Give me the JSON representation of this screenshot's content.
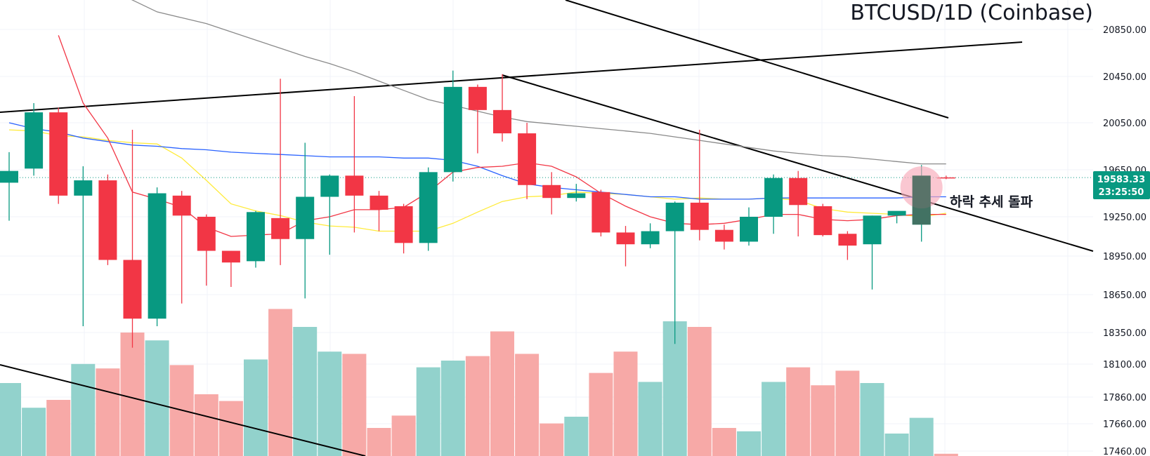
{
  "chart_data": {
    "type": "candlestick",
    "title": "BTCUSD/1D (Coinbase)",
    "symbol": "BTCUSD",
    "interval": "1D",
    "exchange": "Coinbase",
    "y_ticks": [
      "20850.00",
      "20450.00",
      "20050.00",
      "19650.00",
      "19250.00",
      "18950.00",
      "18650.00",
      "18350.00",
      "18100.00",
      "17860.00",
      "17660.00",
      "17460.00"
    ],
    "current_price": "19583.33",
    "countdown": "23:25:50",
    "annotation": "하락 추세 돌파",
    "grid": true,
    "colors": {
      "up": "#089981",
      "down": "#f23645",
      "up_volume": "#92d2cc",
      "down_volume": "#f7a9a7",
      "ma_red": "#f23645",
      "ma_yellow": "#ffeb3b",
      "ma_blue": "#2962ff",
      "ma_gray": "#8a8a8a",
      "trendline": "#000000",
      "circle": "#f7a9b8",
      "price_badge": "#089981"
    },
    "candles": [
      {
        "o": 19540,
        "h": 19800,
        "l": 19220,
        "c": 19640
      },
      {
        "o": 19660,
        "h": 20220,
        "l": 19600,
        "c": 20140
      },
      {
        "o": 20140,
        "h": 20180,
        "l": 19360,
        "c": 19430
      },
      {
        "o": 19430,
        "h": 19680,
        "l": 18400,
        "c": 19560
      },
      {
        "o": 19560,
        "h": 19610,
        "l": 18880,
        "c": 18920
      },
      {
        "o": 18920,
        "h": 19990,
        "l": 18230,
        "c": 18460
      },
      {
        "o": 18460,
        "h": 19500,
        "l": 18400,
        "c": 19450
      },
      {
        "o": 19430,
        "h": 19470,
        "l": 18580,
        "c": 19260
      },
      {
        "o": 19250,
        "h": 19270,
        "l": 18720,
        "c": 18990
      },
      {
        "o": 18990,
        "h": 18990,
        "l": 18710,
        "c": 18900
      },
      {
        "o": 18910,
        "h": 19300,
        "l": 18860,
        "c": 19290
      },
      {
        "o": 19240,
        "h": 20430,
        "l": 18880,
        "c": 19080
      },
      {
        "o": 19080,
        "h": 19880,
        "l": 18620,
        "c": 19420
      },
      {
        "o": 19420,
        "h": 19610,
        "l": 18960,
        "c": 19600
      },
      {
        "o": 19600,
        "h": 20280,
        "l": 19130,
        "c": 19430
      },
      {
        "o": 19430,
        "h": 19470,
        "l": 19140,
        "c": 19310
      },
      {
        "o": 19340,
        "h": 19360,
        "l": 18970,
        "c": 19050
      },
      {
        "o": 19050,
        "h": 19670,
        "l": 18990,
        "c": 19630
      },
      {
        "o": 19630,
        "h": 20500,
        "l": 19550,
        "c": 20360
      },
      {
        "o": 20360,
        "h": 20380,
        "l": 19790,
        "c": 20160
      },
      {
        "o": 20160,
        "h": 20470,
        "l": 19890,
        "c": 19960
      },
      {
        "o": 19960,
        "h": 20050,
        "l": 19400,
        "c": 19520
      },
      {
        "o": 19520,
        "h": 19630,
        "l": 19270,
        "c": 19410
      },
      {
        "o": 19410,
        "h": 19530,
        "l": 19380,
        "c": 19450
      },
      {
        "o": 19460,
        "h": 19480,
        "l": 19100,
        "c": 19130
      },
      {
        "o": 19130,
        "h": 19180,
        "l": 18870,
        "c": 19040
      },
      {
        "o": 19040,
        "h": 19200,
        "l": 19010,
        "c": 19140
      },
      {
        "o": 19140,
        "h": 19380,
        "l": 18260,
        "c": 19370
      },
      {
        "o": 19370,
        "h": 19990,
        "l": 19070,
        "c": 19150
      },
      {
        "o": 19150,
        "h": 19190,
        "l": 19000,
        "c": 19060
      },
      {
        "o": 19060,
        "h": 19330,
        "l": 19030,
        "c": 19250
      },
      {
        "o": 19250,
        "h": 19610,
        "l": 19120,
        "c": 19580
      },
      {
        "o": 19580,
        "h": 19640,
        "l": 19100,
        "c": 19350
      },
      {
        "o": 19340,
        "h": 19360,
        "l": 19100,
        "c": 19110
      },
      {
        "o": 19120,
        "h": 19140,
        "l": 18920,
        "c": 19030
      },
      {
        "o": 19040,
        "h": 19260,
        "l": 18690,
        "c": 19260
      },
      {
        "o": 19260,
        "h": 19290,
        "l": 19200,
        "c": 19300
      },
      {
        "o": 19190,
        "h": 19690,
        "l": 19060,
        "c": 19600
      },
      {
        "o": 19585,
        "h": 19600,
        "l": 19570,
        "c": 19583
      }
    ],
    "volumes": [
      6.5,
      4.3,
      5.0,
      8.2,
      7.8,
      11.0,
      10.3,
      8.1,
      5.5,
      4.9,
      8.6,
      13.1,
      11.5,
      9.3,
      9.1,
      2.5,
      3.6,
      7.9,
      8.5,
      8.9,
      11.1,
      9.1,
      2.9,
      3.5,
      7.4,
      9.3,
      6.6,
      12.0,
      11.5,
      2.5,
      2.2,
      6.6,
      7.9,
      6.3,
      7.6,
      6.5,
      2.0,
      3.4,
      0.2
    ],
    "ma_red": [
      null,
      null,
      20800,
      20220,
      19920,
      19460,
      19400,
      19330,
      19170,
      19100,
      19110,
      19120,
      19220,
      19250,
      19310,
      19310,
      19330,
      19460,
      19630,
      19670,
      19680,
      19710,
      19680,
      19590,
      19450,
      19340,
      19250,
      19200,
      19190,
      19200,
      19230,
      19270,
      19270,
      19230,
      19220,
      19230,
      19260,
      19270,
      19270
    ],
    "ma_yellow": [
      19990,
      19980,
      19940,
      19930,
      19900,
      19880,
      19870,
      19750,
      19560,
      19360,
      19300,
      19260,
      19210,
      19180,
      19170,
      19140,
      19140,
      19140,
      19200,
      19290,
      19380,
      19420,
      19430,
      19460,
      19450,
      19440,
      19420,
      19400,
      19410,
      19400,
      19400,
      19410,
      19390,
      19320,
      19290,
      19280,
      19270,
      19250,
      19280
    ],
    "ma_blue": [
      20050,
      20000,
      19970,
      19920,
      19890,
      19860,
      19850,
      19830,
      19820,
      19800,
      19790,
      19780,
      19770,
      19760,
      19760,
      19760,
      19750,
      19750,
      19730,
      19680,
      19600,
      19530,
      19500,
      19480,
      19460,
      19440,
      19420,
      19420,
      19400,
      19400,
      19400,
      19410,
      19410,
      19410,
      19410,
      19410,
      19410,
      19420,
      19420
    ],
    "ma_gray": [
      21600,
      21500,
      21400,
      21300,
      21200,
      21100,
      21000,
      20950,
      20900,
      20830,
      20760,
      20690,
      20620,
      20560,
      20490,
      20410,
      20330,
      20250,
      20200,
      20150,
      20100,
      20060,
      20040,
      20020,
      20000,
      19980,
      19960,
      19930,
      19900,
      19870,
      19840,
      19810,
      19790,
      19770,
      19760,
      19740,
      19720,
      19700,
      19700
    ]
  }
}
